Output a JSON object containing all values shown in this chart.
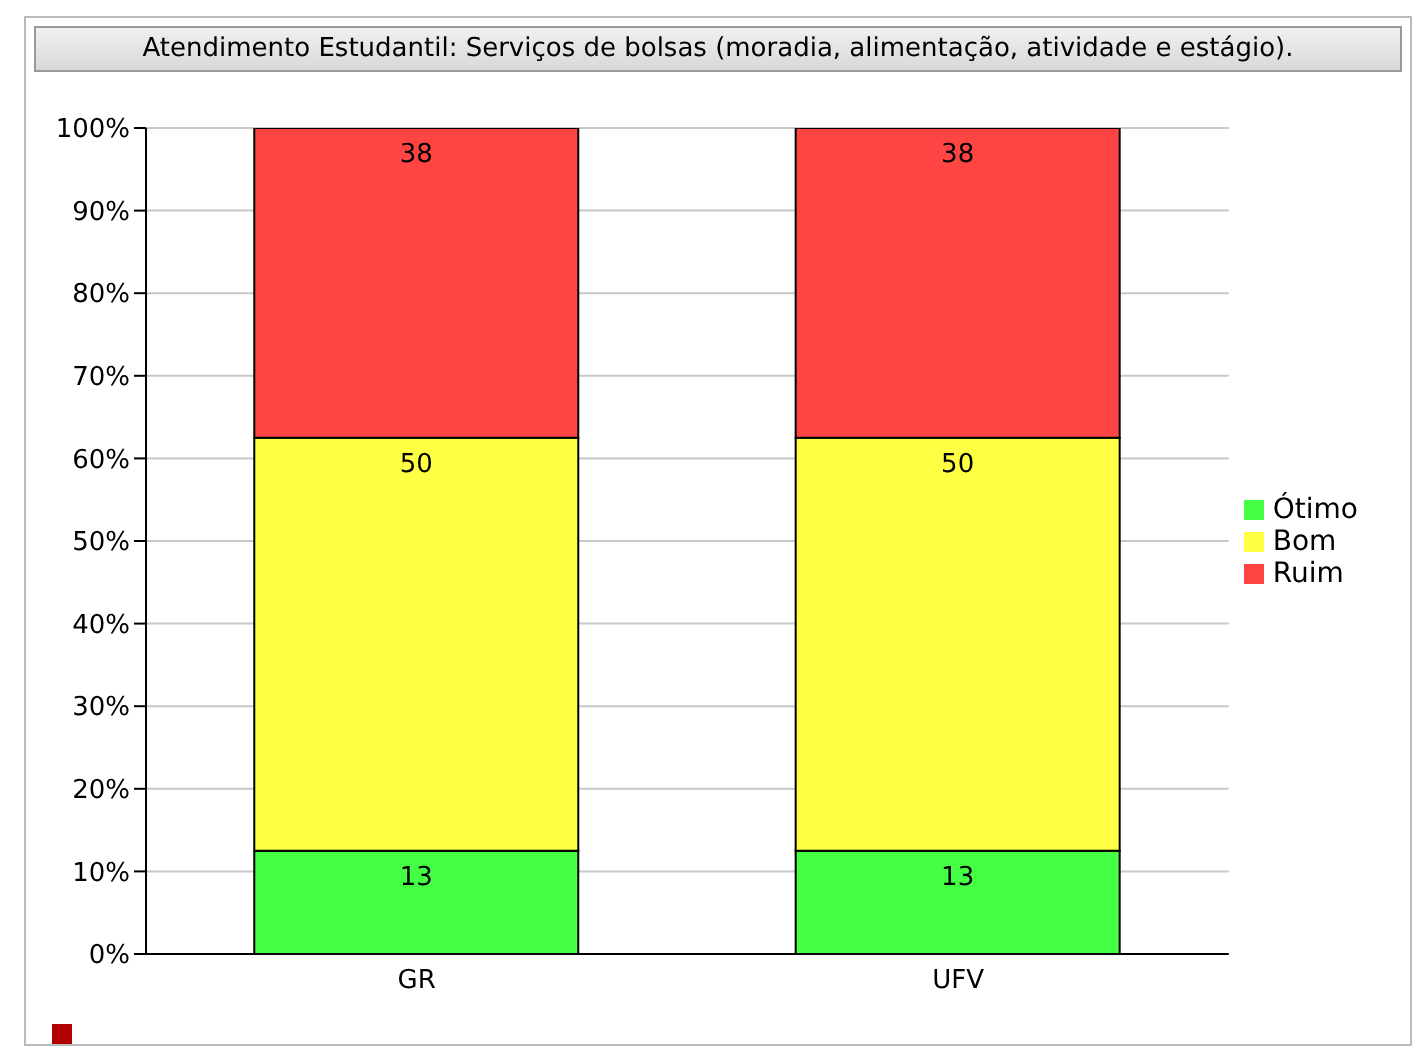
{
  "chart_data": {
    "type": "bar",
    "title": "Atendimento Estudantil: Serviços de bolsas (moradia, alimentação, atividade e estágio).",
    "categories": [
      "GR",
      "UFV"
    ],
    "stacked": true,
    "series": [
      {
        "name": "Ótimo",
        "color": "#44ff44",
        "values": [
          12.5,
          12.5
        ],
        "value_labels": [
          "13",
          "13"
        ]
      },
      {
        "name": "Bom",
        "color": "#ffff44",
        "values": [
          50,
          50
        ],
        "value_labels": [
          "50",
          "50"
        ]
      },
      {
        "name": "Ruim",
        "color": "#ff4444",
        "values": [
          37.5,
          37.5
        ],
        "value_labels": [
          "38",
          "38"
        ]
      }
    ],
    "ylim": [
      0,
      100
    ],
    "yticks": [
      {
        "value": 0,
        "label": "0%"
      },
      {
        "value": 10,
        "label": "10%"
      },
      {
        "value": 20,
        "label": "20%"
      },
      {
        "value": 30,
        "label": "30%"
      },
      {
        "value": 40,
        "label": "40%"
      },
      {
        "value": 50,
        "label": "50%"
      },
      {
        "value": 60,
        "label": "60%"
      },
      {
        "value": 70,
        "label": "70%"
      },
      {
        "value": 80,
        "label": "80%"
      },
      {
        "value": 90,
        "label": "90%"
      },
      {
        "value": 100,
        "label": "100%"
      }
    ],
    "grid": "y",
    "legend": "right"
  }
}
